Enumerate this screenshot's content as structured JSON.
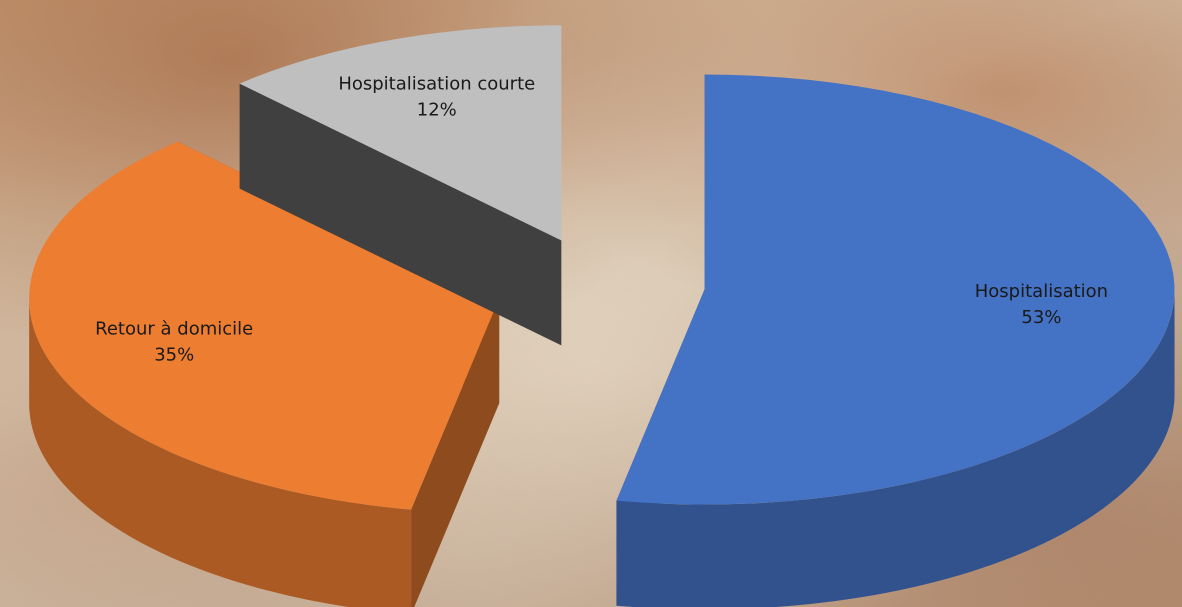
{
  "chart_data": {
    "type": "pie",
    "categories": [
      "Hospitalisation",
      "Retour à domicile",
      "Hospitalisation courte"
    ],
    "values": [
      53,
      35,
      12
    ],
    "value_labels": [
      "53%",
      "35%",
      "12%"
    ],
    "colors": [
      "#4472c4",
      "#ed7d31",
      "#bfbfbf"
    ]
  }
}
